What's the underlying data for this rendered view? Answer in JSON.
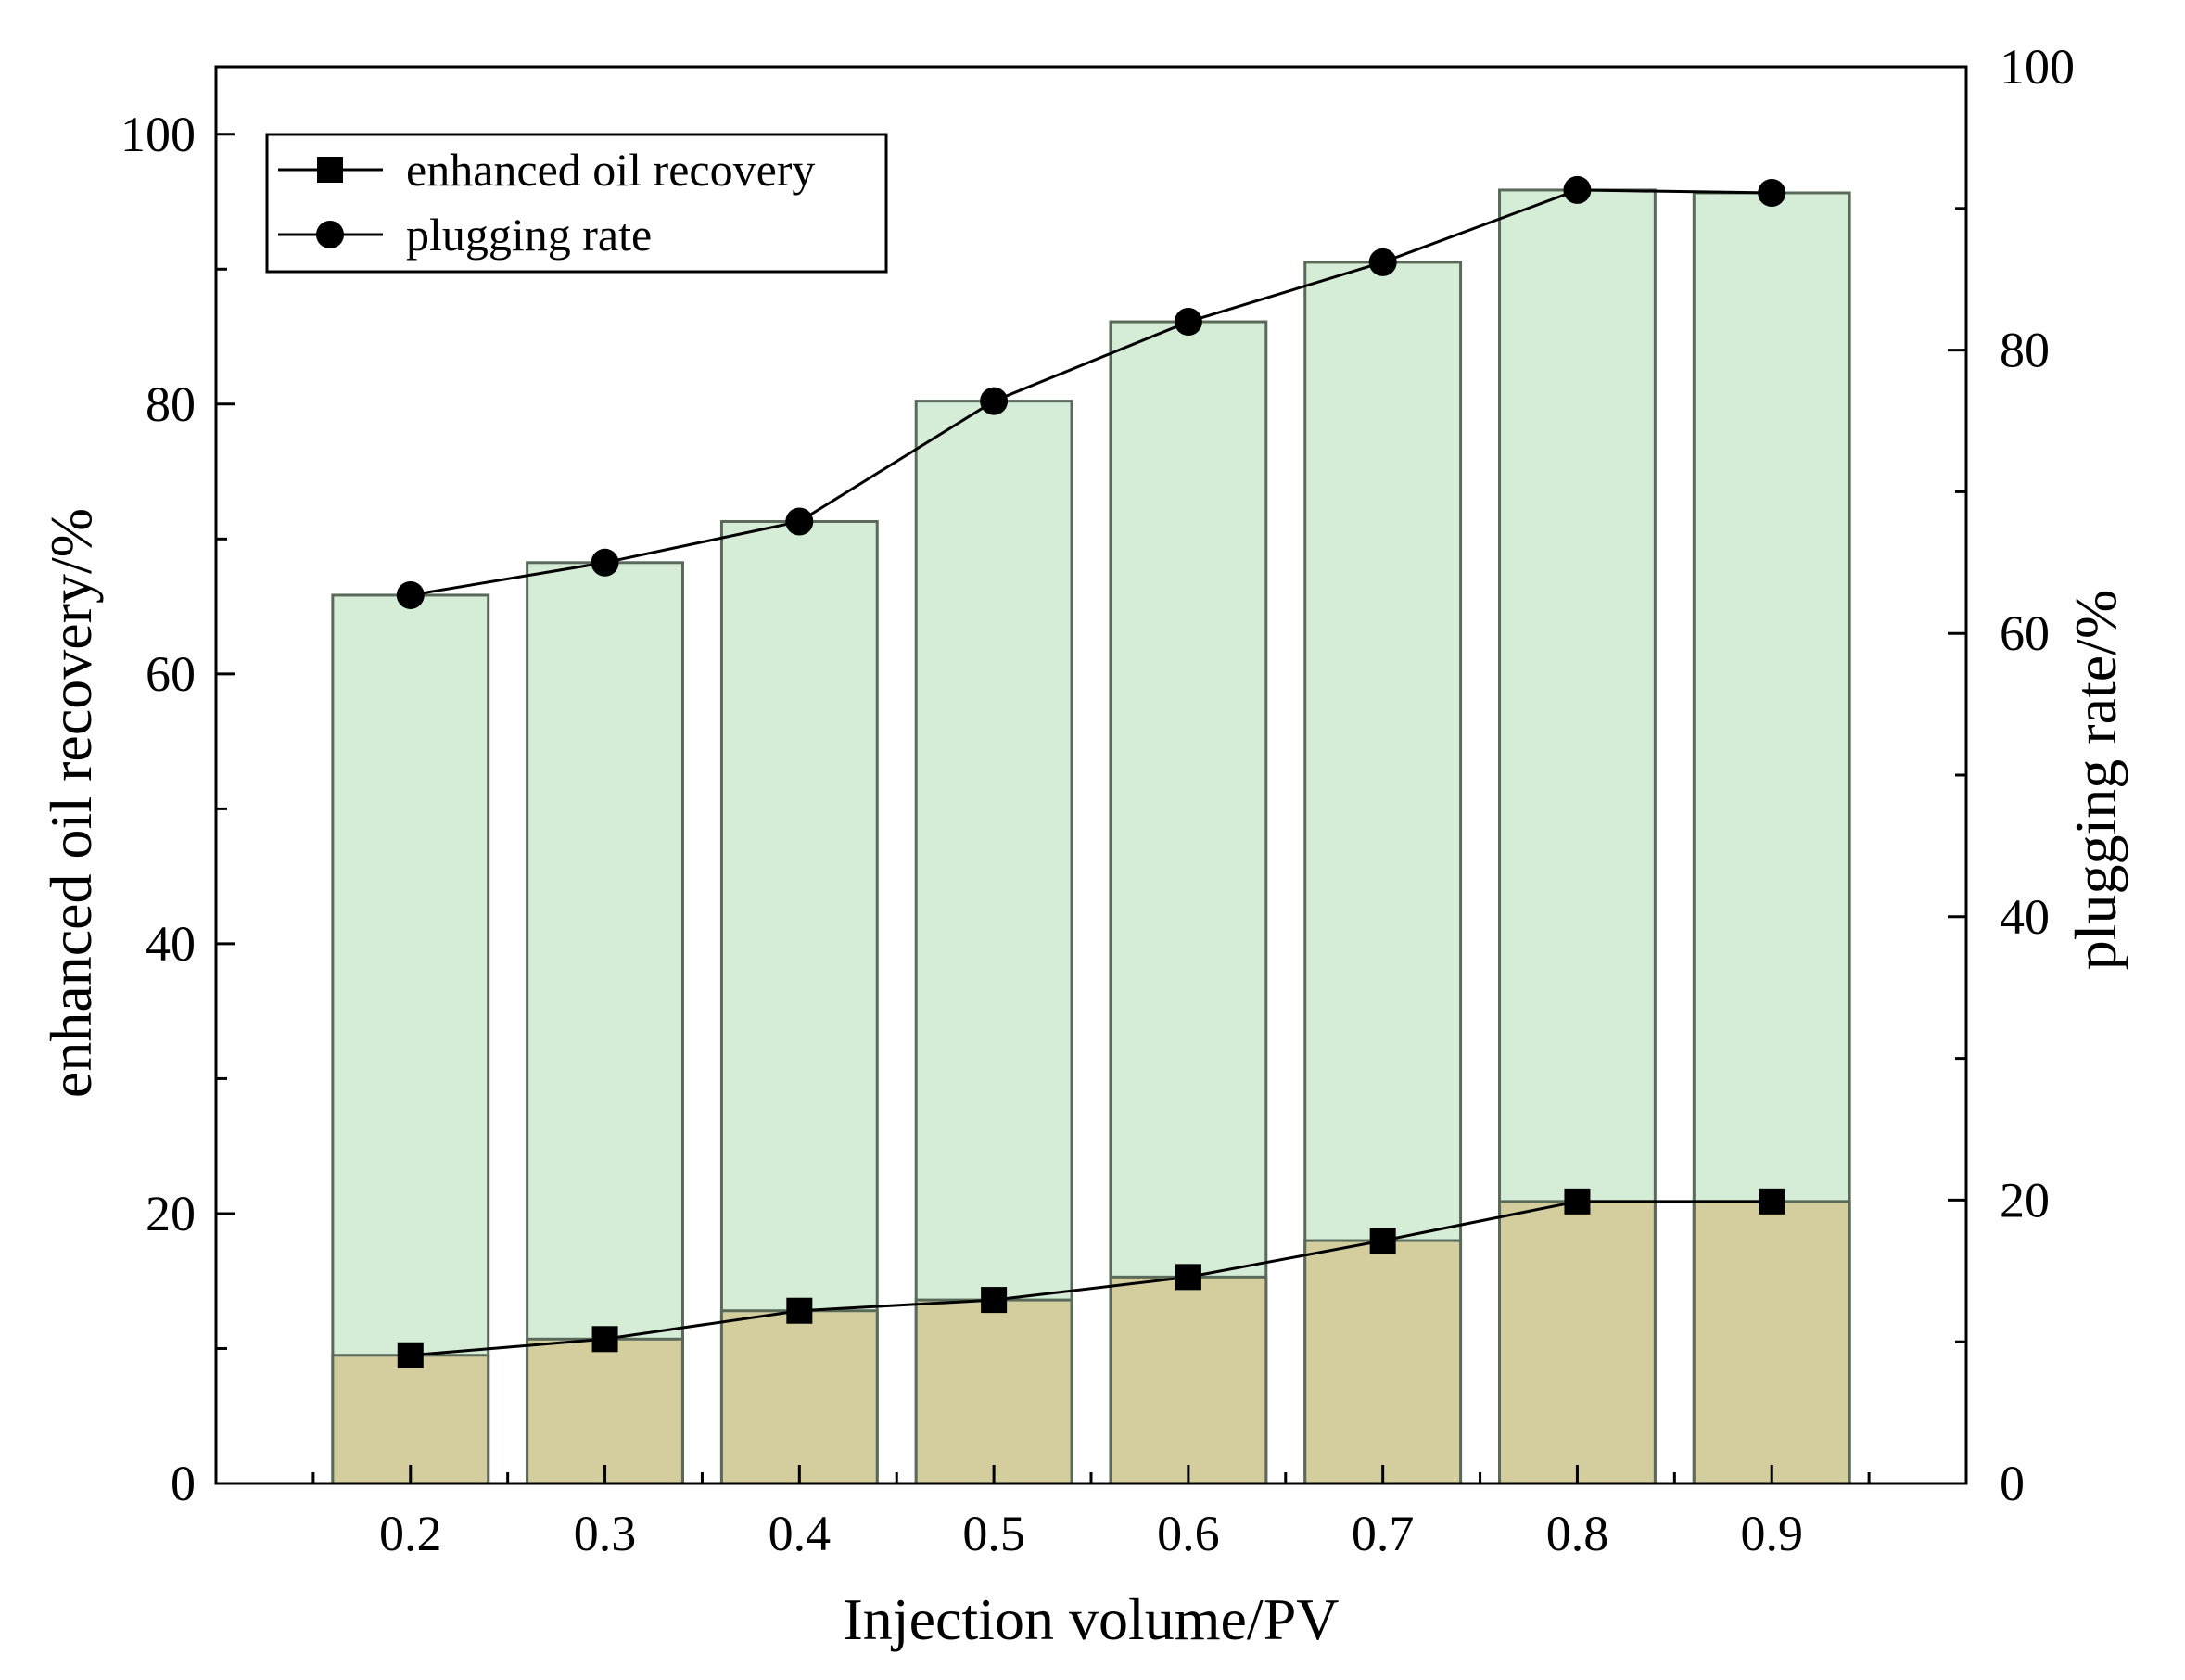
{
  "chart_data": {
    "type": "bar",
    "categories": [
      "0.2",
      "0.3",
      "0.4",
      "0.5",
      "0.6",
      "0.7",
      "0.8",
      "0.9"
    ],
    "xlabel": "Injection volume/PV",
    "ylabel": "enhanced oil recovery/%",
    "y2label": "plugging rate/%",
    "ylim": [
      0,
      105
    ],
    "y2lim": [
      0,
      100
    ],
    "yticks": [
      "0",
      "20",
      "40",
      "60",
      "80",
      "100"
    ],
    "y2ticks": [
      "0",
      "20",
      "40",
      "60",
      "80",
      "100"
    ],
    "series": [
      {
        "name": "enhanced oil recovery",
        "axis": "left",
        "marker": "square",
        "values": [
          9.5,
          10.7,
          12.8,
          13.6,
          15.3,
          18.0,
          20.9,
          20.9
        ]
      },
      {
        "name": "plugging rate",
        "axis": "right",
        "marker": "circle",
        "values": [
          62.7,
          65.0,
          67.9,
          76.4,
          82.0,
          86.2,
          91.3,
          91.1
        ]
      }
    ],
    "colors": {
      "recovery_bar": "#d4cd9d",
      "plugging_bar": "#d5ecd6",
      "bar_edge": "#5a6a5a",
      "line": "#000000"
    },
    "legend": "top-left",
    "grid": false
  }
}
